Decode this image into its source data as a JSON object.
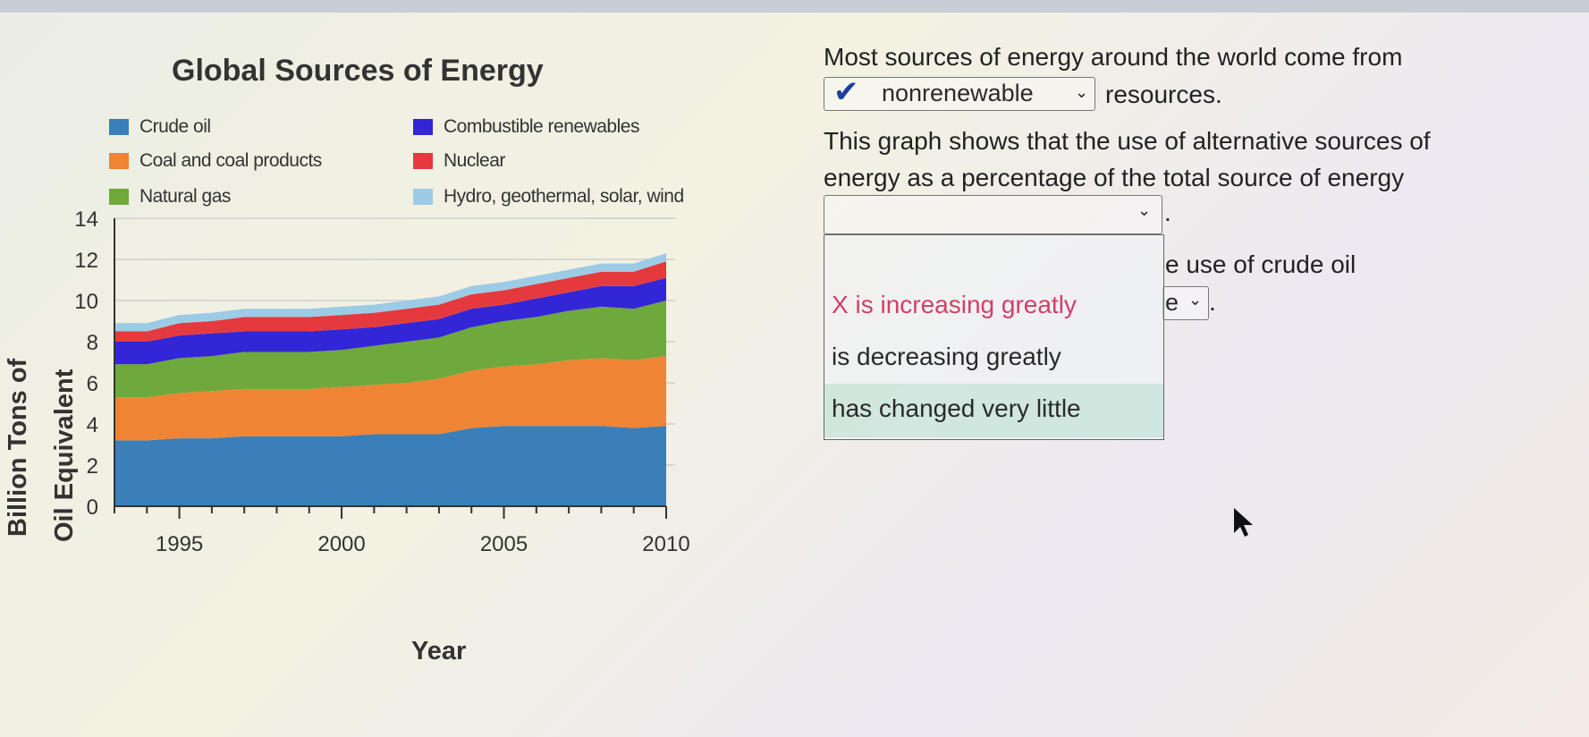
{
  "quiz": {
    "q1_before": "Most sources of energy around the world come from",
    "q1_answer": "nonrenewable",
    "q1_after": "resources.",
    "q1_status_icon": "checkmark-icon",
    "q2_line1": "This graph shows that the use of alternative sources of",
    "q2_line2": "energy as a percentage of the total source of energy",
    "q2_selected": "",
    "q2_after": ".",
    "q3_partial": "e use of crude oil",
    "q3_selected_partial": "e",
    "q3_after": ".",
    "dropdown_options": [
      {
        "label": "",
        "state": "blank"
      },
      {
        "label": "is increasing greatly",
        "marker": "X",
        "state": "incorrect",
        "color": "#d0406a"
      },
      {
        "label": "is decreasing greatly",
        "state": "normal"
      },
      {
        "label": "has changed very little",
        "state": "hovered"
      }
    ]
  },
  "chart_data": {
    "type": "area",
    "stacked": true,
    "title": "Global Sources of Energy",
    "xlabel": "Year",
    "ylabel": "Billion Tons of Oil Equivalent",
    "ylabel_lines": [
      "Billion Tons of",
      "Oil Equivalent"
    ],
    "xlim": [
      1993,
      2010
    ],
    "ylim": [
      0,
      14
    ],
    "yticks": [
      0,
      2,
      4,
      6,
      8,
      10,
      12,
      14
    ],
    "xticks": [
      1995,
      2000,
      2005,
      2010
    ],
    "grid": "horizontal",
    "legend_placement": "top",
    "x": [
      1993,
      1994,
      1995,
      1996,
      1997,
      1998,
      1999,
      2000,
      2001,
      2002,
      2003,
      2004,
      2005,
      2006,
      2007,
      2008,
      2009,
      2010
    ],
    "series": [
      {
        "name": "Crude oil",
        "color": "#3a7fb8",
        "values": [
          3.2,
          3.2,
          3.3,
          3.3,
          3.4,
          3.4,
          3.4,
          3.4,
          3.5,
          3.5,
          3.5,
          3.8,
          3.9,
          3.9,
          3.9,
          3.9,
          3.8,
          3.9
        ]
      },
      {
        "name": "Coal and coal products",
        "color": "#ee8434",
        "values": [
          2.1,
          2.1,
          2.2,
          2.3,
          2.3,
          2.3,
          2.3,
          2.4,
          2.4,
          2.5,
          2.7,
          2.8,
          2.9,
          3.0,
          3.2,
          3.3,
          3.3,
          3.4
        ]
      },
      {
        "name": "Natural gas",
        "color": "#6fa83c",
        "values": [
          1.6,
          1.6,
          1.7,
          1.7,
          1.8,
          1.8,
          1.8,
          1.8,
          1.9,
          2.0,
          2.0,
          2.1,
          2.2,
          2.3,
          2.4,
          2.5,
          2.5,
          2.7
        ]
      },
      {
        "name": "Combustible renewables",
        "color": "#3326d6",
        "values": [
          1.1,
          1.1,
          1.1,
          1.1,
          1.0,
          1.0,
          1.0,
          1.0,
          0.9,
          0.9,
          0.9,
          0.9,
          0.8,
          0.9,
          0.9,
          1.0,
          1.1,
          1.1
        ]
      },
      {
        "name": "Nuclear",
        "color": "#e43a3e",
        "values": [
          0.5,
          0.5,
          0.6,
          0.6,
          0.7,
          0.7,
          0.7,
          0.7,
          0.7,
          0.7,
          0.7,
          0.7,
          0.7,
          0.7,
          0.7,
          0.7,
          0.7,
          0.8
        ]
      },
      {
        "name": "Hydro, geothermal, solar, wind",
        "color": "#9ccbe6",
        "values": [
          0.4,
          0.4,
          0.4,
          0.4,
          0.4,
          0.4,
          0.4,
          0.4,
          0.4,
          0.4,
          0.4,
          0.4,
          0.4,
          0.4,
          0.4,
          0.4,
          0.4,
          0.4
        ]
      }
    ]
  }
}
